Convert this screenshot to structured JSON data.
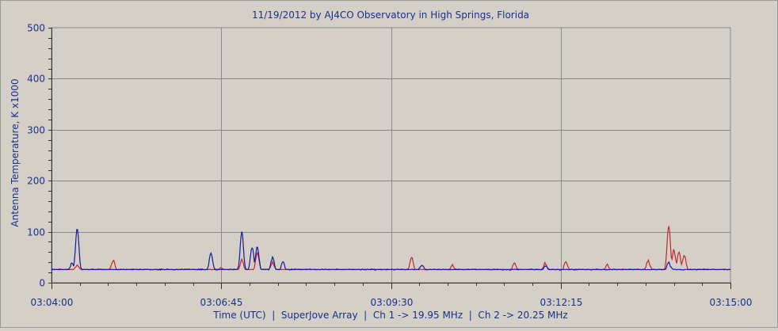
{
  "chart_data": {
    "type": "line",
    "title": "11/19/2012  by  AJ4CO Observatory  in  High Springs, Florida",
    "xlabel": "Time (UTC)  |  SuperJove Array  |  Ch 1 -> 19.95 MHz  |  Ch 2 -> 20.25 MHz",
    "ylabel": "Antenna Temperature, K x1000",
    "ylim": [
      0,
      500
    ],
    "yticks": [
      "0",
      "100",
      "200",
      "300",
      "400",
      "500"
    ],
    "xlim": [
      "03:04:00",
      "03:15:00"
    ],
    "xticks": [
      "03:04:00",
      "03:06:45",
      "03:09:30",
      "03:12:15",
      "03:15:00"
    ],
    "grid": true,
    "colors": {
      "ch1": "#c0272d",
      "ch2": "#1a1a9c",
      "plot_bg": "#d4d0c8",
      "grid": "#8a8a8a",
      "text": "#1b2f87"
    },
    "series": [
      {
        "channel": "Ch 1",
        "color": "#c0272d",
        "baseline": 24,
        "peaks": [
          {
            "t": "03:04:25",
            "v": 35
          },
          {
            "t": "03:05:00",
            "v": 44
          },
          {
            "t": "03:06:45",
            "v": 30
          },
          {
            "t": "03:07:05",
            "v": 45
          },
          {
            "t": "03:07:20",
            "v": 58
          },
          {
            "t": "03:07:35",
            "v": 40
          },
          {
            "t": "03:09:50",
            "v": 49
          },
          {
            "t": "03:10:30",
            "v": 35
          },
          {
            "t": "03:11:30",
            "v": 40
          },
          {
            "t": "03:12:00",
            "v": 38
          },
          {
            "t": "03:12:20",
            "v": 42
          },
          {
            "t": "03:13:00",
            "v": 36
          },
          {
            "t": "03:13:40",
            "v": 44
          },
          {
            "t": "03:14:00",
            "v": 113
          },
          {
            "t": "03:14:05",
            "v": 65
          },
          {
            "t": "03:14:10",
            "v": 60
          },
          {
            "t": "03:14:15",
            "v": 55
          }
        ]
      },
      {
        "channel": "Ch 2",
        "color": "#1a1a9c",
        "baseline": 24,
        "peaks": [
          {
            "t": "03:04:20",
            "v": 40
          },
          {
            "t": "03:04:25",
            "v": 108
          },
          {
            "t": "03:06:35",
            "v": 60
          },
          {
            "t": "03:07:05",
            "v": 100
          },
          {
            "t": "03:07:15",
            "v": 70
          },
          {
            "t": "03:07:20",
            "v": 72
          },
          {
            "t": "03:07:35",
            "v": 50
          },
          {
            "t": "03:07:45",
            "v": 40
          },
          {
            "t": "03:10:00",
            "v": 35
          },
          {
            "t": "03:12:00",
            "v": 33
          },
          {
            "t": "03:14:00",
            "v": 40
          }
        ]
      }
    ]
  }
}
